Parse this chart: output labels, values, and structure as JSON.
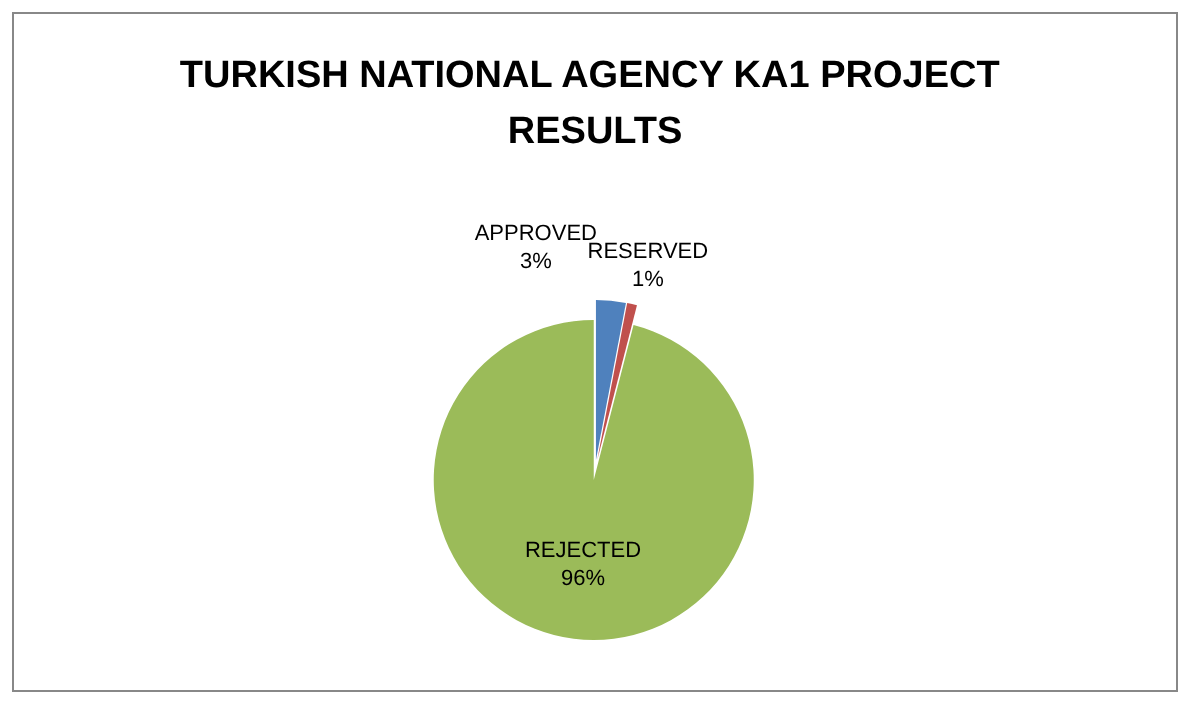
{
  "chart_data": {
    "type": "pie",
    "title": "TURKISH NATIONAL AGENCY KA1 PROJECT RESULTS",
    "categories": [
      "APPROVED",
      "RESERVED",
      "REJECTED"
    ],
    "values": [
      3,
      1,
      96
    ],
    "colors": [
      "#4f81bd",
      "#c0504d",
      "#9bbb59"
    ],
    "value_labels": [
      "3%",
      "1%",
      "96%"
    ],
    "legend": false
  }
}
